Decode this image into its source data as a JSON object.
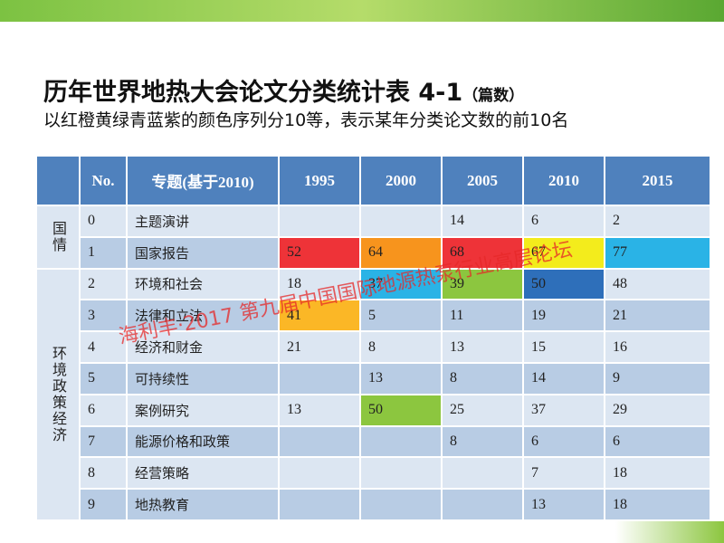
{
  "header": {
    "title": "历年世界地热大会论文分类统计表 4-1",
    "unit": "（篇数）",
    "subtitle": "以红橙黄绿青蓝紫的颜色序列分10等，表示某年分类论文数的前10名"
  },
  "watermark": "海利丰·2017  第九届中国国际地源热泵行业高层论坛",
  "table": {
    "columns": [
      "No.",
      "专题(基于2010)",
      1995,
      2000,
      2005,
      2010,
      2015
    ],
    "groups": [
      {
        "label": "国情",
        "rows": [
          {
            "no": 0,
            "topic": "主题演讲",
            "values": [
              null,
              null,
              14,
              6,
              2
            ],
            "colors": [
              null,
              null,
              null,
              null,
              null
            ]
          },
          {
            "no": 1,
            "topic": "国家报告",
            "values": [
              52,
              64,
              68,
              67,
              77
            ],
            "colors": [
              "#ee3338",
              "#f7941d",
              "#ee3338",
              "#f3ec1c",
              "#2ab3e6"
            ]
          }
        ]
      },
      {
        "label": "环境政策经济",
        "rows": [
          {
            "no": 2,
            "topic": "环境和社会",
            "values": [
              18,
              37,
              39,
              50,
              48
            ],
            "colors": [
              null,
              "#2ab3e6",
              "#8cc63f",
              "#2e6fba",
              null
            ]
          },
          {
            "no": 3,
            "topic": "法律和立法",
            "values": [
              41,
              5,
              11,
              19,
              21
            ],
            "colors": [
              "#fbb726",
              null,
              null,
              null,
              null
            ]
          },
          {
            "no": 4,
            "topic": "经济和财金",
            "values": [
              21,
              8,
              13,
              15,
              16
            ],
            "colors": [
              null,
              null,
              null,
              null,
              null
            ]
          },
          {
            "no": 5,
            "topic": "可持续性",
            "values": [
              null,
              13,
              8,
              14,
              9
            ],
            "colors": [
              null,
              null,
              null,
              null,
              null
            ]
          },
          {
            "no": 6,
            "topic": "案例研究",
            "values": [
              13,
              50,
              25,
              37,
              29
            ],
            "colors": [
              null,
              "#8cc63f",
              null,
              null,
              null
            ]
          },
          {
            "no": 7,
            "topic": "能源价格和政策",
            "values": [
              null,
              null,
              8,
              6,
              6
            ],
            "colors": [
              null,
              null,
              null,
              null,
              null
            ]
          },
          {
            "no": 8,
            "topic": "经营策略",
            "values": [
              null,
              null,
              null,
              7,
              18
            ],
            "colors": [
              null,
              null,
              null,
              null,
              null
            ]
          },
          {
            "no": 9,
            "topic": "地热教育",
            "values": [
              null,
              null,
              null,
              13,
              18
            ],
            "colors": [
              null,
              null,
              null,
              null,
              null
            ]
          }
        ]
      }
    ]
  }
}
